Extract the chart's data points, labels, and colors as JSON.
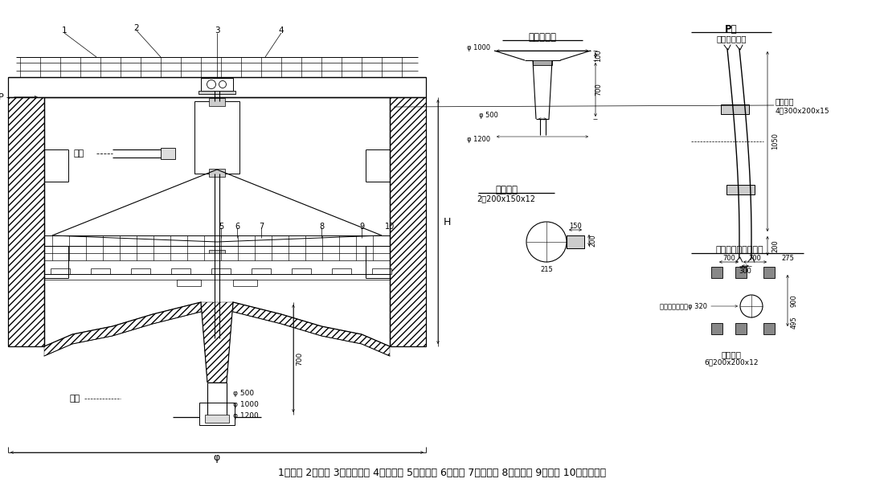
{
  "bg": "#ffffff",
  "lc": "#000000",
  "caption": "1、栏杆 2、主棁 3、传动装置 4、稳流筒 5、传动轴 6、拉杆 7、小刁板 8、挂泥板 9、刁臂 10、浓缩栅条",
  "tx_jinshui": "进水",
  "tx_paini": "排泥",
  "tx_H": "H",
  "tx_P": "P",
  "tx_phi": "φ",
  "d1_title": "泥坑预埋件",
  "d2_title": "预埋钔板",
  "d2_sub": "2－200x150x12",
  "d3_title": "P向",
  "d3_sub1": "工作桥底预埋",
  "d3_sub2": "预埋钔板",
  "d3_sub3": "4－300x200x15",
  "d4_title": "混凝土工作桥预埋件",
  "d4_sub1": "池中心预留孔洞φ 320",
  "d4_sub2": "预埋钔板",
  "d4_sub3": "6－200x200x12",
  "n1": "1",
  "n2": "2",
  "n3": "3",
  "n4": "4",
  "n5": "5",
  "n6": "6",
  "n7": "7",
  "n8": "8",
  "n9": "9",
  "n10": "10",
  "dphi1000": "φ 1000",
  "dphi500": "φ 500",
  "dphi1200": "φ 1200",
  "d100": "100",
  "d700": "700",
  "d150": "150",
  "d215": "215",
  "d200": "200",
  "d1050": "1050",
  "d200b": "200",
  "d300": "300",
  "d700c": "700",
  "d700d": "700",
  "d275": "275",
  "d900": "900",
  "d495": "495",
  "mphi500": "φ 500",
  "mphi1000": "φ 1000",
  "mphi1200": "φ 1200"
}
